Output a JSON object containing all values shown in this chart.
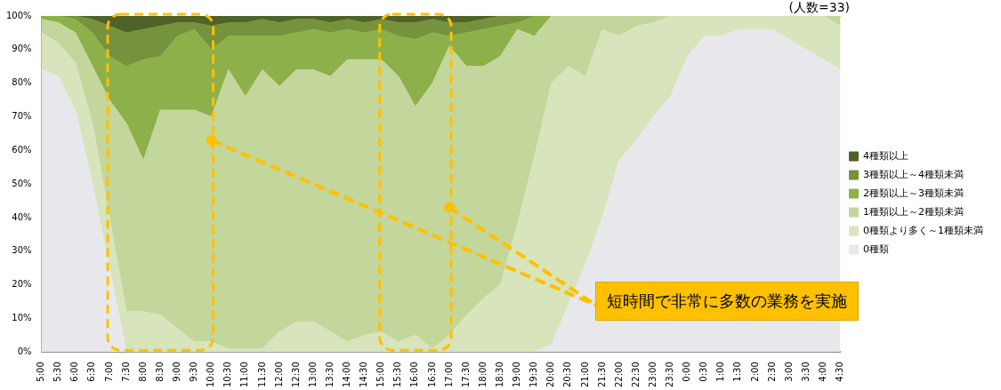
{
  "chart_data": {
    "type": "area",
    "stacked": true,
    "categories": [
      "5:00",
      "5:30",
      "6:00",
      "6:30",
      "7:00",
      "7:30",
      "8:00",
      "8:30",
      "9:00",
      "9:30",
      "10:00",
      "10:30",
      "11:00",
      "11:30",
      "12:00",
      "12:30",
      "13:00",
      "13:30",
      "14:00",
      "14:30",
      "15:00",
      "15:30",
      "16:00",
      "16:30",
      "17:00",
      "17:30",
      "18:00",
      "18:30",
      "19:00",
      "19:30",
      "20:00",
      "20:30",
      "21:00",
      "21:30",
      "22:00",
      "22:30",
      "23:00",
      "23:30",
      "0:00",
      "0:30",
      "1:00",
      "1:30",
      "2:00",
      "2:30",
      "3:00",
      "3:30",
      "4:00",
      "4:30"
    ],
    "series": [
      {
        "name": "0種類",
        "color": "#e8e8ec",
        "values": [
          84,
          82,
          72,
          50,
          25,
          0,
          0,
          0,
          0,
          0,
          0,
          0,
          0,
          0,
          0,
          0,
          0,
          0,
          0,
          0,
          0,
          0,
          0,
          0,
          0,
          0,
          0,
          0,
          0,
          0,
          2,
          14,
          26,
          40,
          57,
          63,
          70,
          76,
          88,
          94,
          94,
          96,
          96,
          96,
          93,
          90,
          87,
          84
        ]
      },
      {
        "name": "0種類より多く～1種類未満",
        "color": "#d7e4bc",
        "values": [
          11,
          10,
          14,
          18,
          15,
          12,
          12,
          11,
          7,
          3,
          3,
          1,
          1,
          1,
          6,
          9,
          9,
          6,
          3,
          5,
          6,
          3,
          5,
          1,
          5,
          11,
          16,
          20,
          38,
          58,
          78,
          71,
          56,
          56,
          37,
          34,
          28,
          24,
          12,
          6,
          6,
          4,
          4,
          4,
          7,
          10,
          13,
          13
        ]
      },
      {
        "name": "1種類以上～2種類未満",
        "color": "#c3d69b",
        "values": [
          4,
          6,
          9,
          17,
          35,
          56,
          45,
          61,
          65,
          69,
          67,
          83,
          75,
          83,
          73,
          75,
          75,
          76,
          84,
          82,
          81,
          79,
          68,
          79,
          86,
          74,
          69,
          68,
          58,
          36,
          20,
          15,
          18,
          4,
          6,
          3,
          2,
          0,
          0,
          0,
          0,
          0,
          0,
          0,
          0,
          0,
          0,
          3
        ]
      },
      {
        "name": "2種類以上～3種類未満",
        "color": "#8db04a",
        "values": [
          1,
          2,
          4,
          10,
          13,
          17,
          30,
          16,
          22,
          24,
          20,
          10,
          18,
          10,
          15,
          11,
          12,
          13,
          9,
          8,
          9,
          12,
          20,
          15,
          3,
          10,
          11,
          9,
          2,
          6,
          0,
          0,
          0,
          0,
          0,
          0,
          0,
          0,
          0,
          0,
          0,
          0,
          0,
          0,
          0,
          0,
          0,
          0
        ]
      },
      {
        "name": "3種類以上～4種類未満",
        "color": "#76923c",
        "values": [
          0,
          0,
          1,
          4,
          9,
          10,
          9,
          9,
          4,
          2,
          7,
          4,
          4,
          5,
          4,
          4,
          3,
          3,
          3,
          3,
          3,
          4,
          5,
          4,
          4,
          3,
          3,
          3,
          2,
          0,
          0,
          0,
          0,
          0,
          0,
          0,
          0,
          0,
          0,
          0,
          0,
          0,
          0,
          0,
          0,
          0,
          0,
          0
        ]
      },
      {
        "name": "4種類以上",
        "color": "#4f6228",
        "values": [
          0,
          0,
          0,
          1,
          3,
          5,
          4,
          3,
          2,
          2,
          3,
          2,
          2,
          1,
          2,
          1,
          1,
          2,
          1,
          2,
          1,
          2,
          2,
          1,
          2,
          2,
          1,
          0,
          0,
          0,
          0,
          0,
          0,
          0,
          0,
          0,
          0,
          0,
          0,
          0,
          0,
          0,
          0,
          0,
          0,
          0,
          0,
          0
        ]
      }
    ],
    "ylim": [
      0,
      100
    ],
    "yticks": [
      {
        "value": 0,
        "label": "0%"
      },
      {
        "value": 10,
        "label": "10%"
      },
      {
        "value": 20,
        "label": "20%"
      },
      {
        "value": 30,
        "label": "30%"
      },
      {
        "value": 40,
        "label": "40%"
      },
      {
        "value": 50,
        "label": "50%"
      },
      {
        "value": 60,
        "label": "60%"
      },
      {
        "value": 70,
        "label": "70%"
      },
      {
        "value": 80,
        "label": "80%"
      },
      {
        "value": 90,
        "label": "90%"
      },
      {
        "value": 100,
        "label": "100%"
      }
    ],
    "grid": false,
    "legend": "right",
    "annotations": [
      "(人数=33)",
      "短時間で非常に多数の業務を実施"
    ]
  }
}
